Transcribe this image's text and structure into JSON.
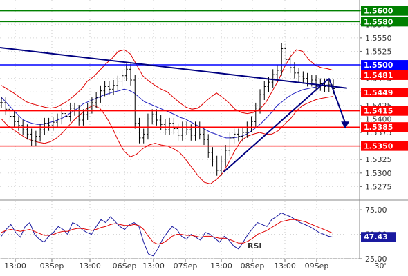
{
  "chart_data": [
    {
      "type": "line",
      "panel": "price",
      "ylim": [
        1.525,
        1.562
      ],
      "y_ticks": [
        "1.5600",
        "1.5575",
        "1.5550",
        "1.5525",
        "1.5500",
        "1.5475",
        "1.5450",
        "1.5425",
        "1.5400",
        "1.5375",
        "1.5350",
        "1.5325",
        "1.5300",
        "1.5275"
      ],
      "x_ticks": [
        "13:00",
        "03Sep",
        "13:00",
        "06Sep",
        "13:00",
        "07Sep",
        "13:00",
        "08Sep",
        "13:00",
        "09Sep",
        "30'"
      ],
      "series": [
        {
          "values": [
            1.543,
            1.5418,
            1.5405,
            1.5395,
            1.5388,
            1.538,
            1.5372,
            1.536,
            1.5368,
            1.538,
            1.5392,
            1.5388,
            1.5394,
            1.54,
            1.541,
            1.5405,
            1.542,
            1.5416,
            1.5398,
            1.5408,
            1.542,
            1.543,
            1.544,
            1.5452,
            1.546,
            1.5455,
            1.5462,
            1.547,
            1.548,
            1.5492,
            1.5472,
            1.5392,
            1.5365,
            1.5372,
            1.54,
            1.5408,
            1.5398,
            1.539,
            1.538,
            1.5392,
            1.5382,
            1.537,
            1.5385,
            1.538,
            1.537,
            1.5385,
            1.5372,
            1.5362,
            1.5338,
            1.5322,
            1.5305,
            1.5322,
            1.5342,
            1.5365,
            1.5372,
            1.5368,
            1.5375,
            1.5385,
            1.5395,
            1.542,
            1.5445,
            1.546,
            1.5468,
            1.5482,
            1.549,
            1.553,
            1.551,
            1.5495,
            1.5485,
            1.5478,
            1.5475,
            1.547,
            1.5472,
            1.5462,
            1.5465,
            1.546,
            1.5463,
            1.5456
          ]
        },
        {
          "values": [
            1.544,
            1.543,
            1.542,
            1.541,
            1.54,
            1.5395,
            1.5392,
            1.539,
            1.539,
            1.5392,
            1.5395,
            1.5398,
            1.5402,
            1.5408,
            1.5414,
            1.542,
            1.5428,
            1.5432,
            1.5436,
            1.544,
            1.5444,
            1.5447,
            1.545,
            1.5452,
            1.5455,
            1.5453,
            1.5448,
            1.544,
            1.5432,
            1.5428,
            1.5424,
            1.542,
            1.5416,
            1.5412,
            1.5408,
            1.5403,
            1.54,
            1.5395,
            1.539,
            1.5385,
            1.538,
            1.5375,
            1.5372,
            1.5368,
            1.5365,
            1.5365,
            1.5366,
            1.5368,
            1.5372,
            1.5378,
            1.5385,
            1.5393,
            1.5403,
            1.5413,
            1.5425,
            1.5432,
            1.544,
            1.5446,
            1.545,
            1.5454,
            1.5456,
            1.5458,
            1.546,
            1.5462,
            1.5463,
            1.5463
          ]
        }
      ],
      "bollinger": {
        "upper": [
          1.5462,
          1.5455,
          1.5448,
          1.544,
          1.5432,
          1.5428,
          1.5425,
          1.5422,
          1.542,
          1.5422,
          1.5428,
          1.5435,
          1.5445,
          1.5455,
          1.547,
          1.5478,
          1.549,
          1.5502,
          1.5512,
          1.5525,
          1.5528,
          1.552,
          1.55,
          1.548,
          1.547,
          1.5462,
          1.5455,
          1.545,
          1.544,
          1.543,
          1.5422,
          1.5418,
          1.542,
          1.543,
          1.544,
          1.5448,
          1.544,
          1.543,
          1.5418,
          1.5412,
          1.541,
          1.5412,
          1.5418,
          1.543,
          1.545,
          1.547,
          1.5495,
          1.5515,
          1.5528,
          1.5525,
          1.551,
          1.55,
          1.5495,
          1.5493,
          1.549
        ],
        "lower": [
          1.54,
          1.5388,
          1.538,
          1.5372,
          1.5365,
          1.536,
          1.5357,
          1.5355,
          1.5358,
          1.5365,
          1.5375,
          1.5388,
          1.54,
          1.541,
          1.542,
          1.5425,
          1.542,
          1.5405,
          1.5385,
          1.536,
          1.534,
          1.533,
          1.5335,
          1.5345,
          1.5352,
          1.5355,
          1.5352,
          1.535,
          1.5345,
          1.5338,
          1.5325,
          1.531,
          1.5295,
          1.5283,
          1.528,
          1.5288,
          1.53,
          1.532,
          1.5342,
          1.536,
          1.5368,
          1.5372,
          1.5375,
          1.5372,
          1.5372,
          1.5378,
          1.539,
          1.54,
          1.5415,
          1.5425,
          1.543,
          1.5435,
          1.5438,
          1.544,
          1.5442
        ]
      },
      "levels": [
        {
          "value": 1.56,
          "label": "1.5600",
          "color": "#008000"
        },
        {
          "value": 1.558,
          "label": "1.5580",
          "color": "#008000"
        },
        {
          "value": 1.55,
          "label": "1.5500",
          "color": "#0000ff"
        },
        {
          "value": 1.5415,
          "label": "1.5415",
          "color": "#ff0000"
        },
        {
          "value": 1.5385,
          "label": "1.5385",
          "color": "#ff0000"
        },
        {
          "value": 1.535,
          "label": "1.5350",
          "color": "#ff0000"
        }
      ],
      "price_tags": [
        {
          "value": 1.5481,
          "label": "1.5481",
          "color": "#ff0000"
        },
        {
          "value": 1.5449,
          "label": "1.5449",
          "color": "#ff0000"
        }
      ],
      "trendlines": [
        {
          "from": [
            0.0,
            1.5532
          ],
          "to": [
            0.965,
            1.5457
          ],
          "color": "#000080"
        },
        {
          "from": [
            0.622,
            1.5302
          ],
          "to": [
            0.915,
            1.5475
          ],
          "color": "#000080"
        }
      ],
      "forecast_arrow": {
        "from": [
          0.915,
          1.5475
        ],
        "to": [
          0.96,
          1.5385
        ],
        "color": "#000080"
      }
    },
    {
      "type": "line",
      "panel": "rsi",
      "title": "RSI",
      "ylim": [
        25,
        85
      ],
      "y_ticks": [
        "75.00",
        "50.00",
        "25.00"
      ],
      "current_value": "47.43",
      "series": [
        {
          "values": [
            48,
            55,
            60,
            52,
            47,
            58,
            62,
            50,
            45,
            42,
            48,
            52,
            58,
            55,
            50,
            62,
            60,
            55,
            52,
            50,
            58,
            65,
            62,
            68,
            63,
            58,
            55,
            60,
            62,
            58,
            42,
            30,
            28,
            35,
            45,
            52,
            58,
            55,
            48,
            45,
            50,
            47,
            44,
            52,
            50,
            46,
            42,
            48,
            44,
            38,
            35,
            42,
            50,
            56,
            62,
            60,
            58,
            65,
            68,
            72,
            70,
            68,
            65,
            62,
            60,
            58,
            55,
            52,
            50,
            48,
            47
          ]
        },
        {
          "values": [
            52,
            54,
            55,
            54,
            53,
            54,
            55,
            53,
            51,
            49,
            49,
            50,
            52,
            53,
            53,
            55,
            56,
            56,
            55,
            54,
            55,
            57,
            58,
            60,
            61,
            60,
            59,
            59,
            60,
            59,
            55,
            48,
            42,
            40,
            41,
            44,
            48,
            50,
            50,
            49,
            49,
            48,
            47,
            48,
            48,
            47,
            46,
            46,
            45,
            43,
            41,
            41,
            43,
            46,
            50,
            52,
            54,
            57,
            60,
            63,
            64,
            65,
            65,
            64,
            63,
            61,
            59,
            57,
            55,
            53,
            51
          ]
        }
      ]
    }
  ]
}
